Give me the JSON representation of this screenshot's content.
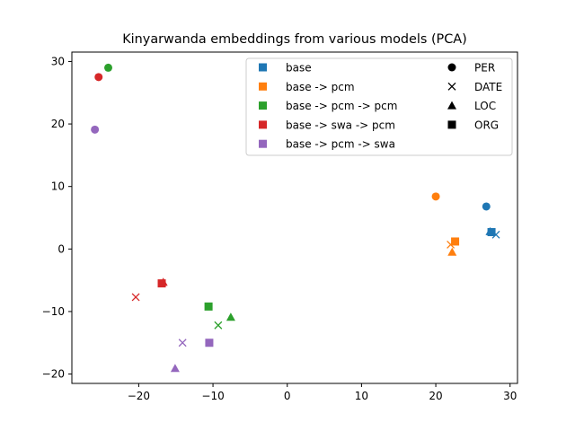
{
  "chart_data": {
    "type": "scatter",
    "title": "Kinyarwanda embeddings from various models (PCA)",
    "xlabel": "",
    "ylabel": "",
    "xlim": [
      -29,
      31
    ],
    "ylim": [
      -21.5,
      31.5
    ],
    "xticks": [
      -20,
      -10,
      0,
      10,
      20,
      30
    ],
    "yticks": [
      -20,
      -10,
      0,
      10,
      20,
      30
    ],
    "grid": false,
    "legend_placement": "top-right",
    "series": [
      {
        "name": "base",
        "color": "#1f77b4",
        "points": [
          {
            "label": "PER",
            "x": 26.8,
            "y": 6.8
          },
          {
            "label": "DATE",
            "x": 28.1,
            "y": 2.3
          },
          {
            "label": "LOC",
            "x": 27.3,
            "y": 2.8
          },
          {
            "label": "ORG",
            "x": 27.5,
            "y": 2.7
          }
        ]
      },
      {
        "name": "base -> pcm",
        "color": "#ff7f0e",
        "points": [
          {
            "label": "PER",
            "x": 20.0,
            "y": 8.4
          },
          {
            "label": "DATE",
            "x": 22.0,
            "y": 0.7
          },
          {
            "label": "LOC",
            "x": 22.2,
            "y": -0.5
          },
          {
            "label": "ORG",
            "x": 22.6,
            "y": 1.2
          }
        ]
      },
      {
        "name": "base -> pcm -> pcm",
        "color": "#2ca02c",
        "points": [
          {
            "label": "PER",
            "x": -24.1,
            "y": 29.0
          },
          {
            "label": "DATE",
            "x": -9.3,
            "y": -12.2
          },
          {
            "label": "LOC",
            "x": -7.6,
            "y": -10.9
          },
          {
            "label": "ORG",
            "x": -10.6,
            "y": -9.2
          }
        ]
      },
      {
        "name": "base -> swa -> pcm",
        "color": "#d62728",
        "points": [
          {
            "label": "PER",
            "x": -25.4,
            "y": 27.5
          },
          {
            "label": "DATE",
            "x": -20.4,
            "y": -7.7
          },
          {
            "label": "LOC",
            "x": -16.7,
            "y": -5.3
          },
          {
            "label": "ORG",
            "x": -16.9,
            "y": -5.5
          }
        ]
      },
      {
        "name": "base -> pcm -> swa",
        "color": "#9467bd",
        "points": [
          {
            "label": "PER",
            "x": -25.9,
            "y": 19.1
          },
          {
            "label": "DATE",
            "x": -14.1,
            "y": -15.0
          },
          {
            "label": "LOC",
            "x": -15.1,
            "y": -19.1
          },
          {
            "label": "ORG",
            "x": -10.5,
            "y": -15.0
          }
        ]
      }
    ],
    "marker_legend": [
      {
        "label": "PER",
        "marker": "circle"
      },
      {
        "label": "DATE",
        "marker": "x"
      },
      {
        "label": "LOC",
        "marker": "triangle"
      },
      {
        "label": "ORG",
        "marker": "square"
      }
    ]
  }
}
